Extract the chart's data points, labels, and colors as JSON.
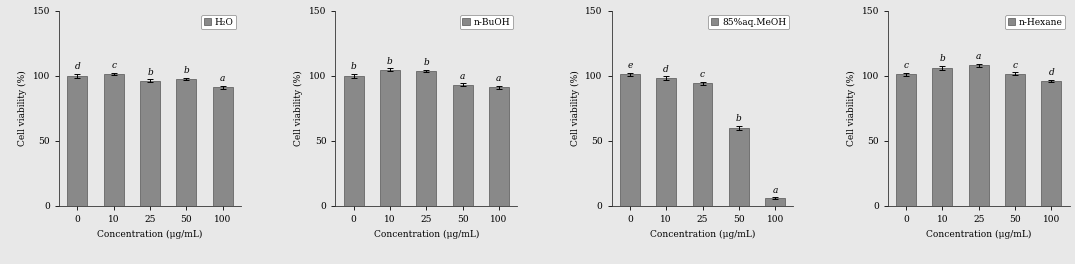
{
  "panels": [
    {
      "legend": "H₂O",
      "categories": [
        "0",
        "10",
        "25",
        "50",
        "100"
      ],
      "values": [
        100.0,
        101.5,
        96.0,
        97.5,
        91.0
      ],
      "errors": [
        1.5,
        0.8,
        1.2,
        1.0,
        1.0
      ],
      "letters": [
        "d",
        "c",
        "b",
        "b",
        "a"
      ]
    },
    {
      "legend": "n-BuOH",
      "categories": [
        "0",
        "10",
        "25",
        "50",
        "100"
      ],
      "values": [
        100.0,
        104.5,
        103.5,
        93.0,
        91.0
      ],
      "errors": [
        1.5,
        1.2,
        1.0,
        1.0,
        1.0
      ],
      "letters": [
        "b",
        "b",
        "b",
        "a",
        "a"
      ]
    },
    {
      "legend": "85%aq.MeOH",
      "categories": [
        "0",
        "10",
        "25",
        "50",
        "100"
      ],
      "values": [
        101.0,
        98.0,
        94.0,
        60.0,
        6.0
      ],
      "errors": [
        1.2,
        1.5,
        1.3,
        1.5,
        0.5
      ],
      "letters": [
        "e",
        "d",
        "c",
        "b",
        "a"
      ]
    },
    {
      "legend": "n-Hexane",
      "categories": [
        "0",
        "10",
        "25",
        "50",
        "100"
      ],
      "values": [
        101.0,
        106.0,
        108.0,
        101.5,
        96.0
      ],
      "errors": [
        1.2,
        1.5,
        1.0,
        1.2,
        1.0
      ],
      "letters": [
        "c",
        "b",
        "a",
        "c",
        "d"
      ]
    }
  ],
  "bar_color": "#898989",
  "bar_edgecolor": "#555555",
  "bg_color": "#e8e8e8",
  "ylabel": "Cell viability (%)",
  "xlabel": "Concentration (μg/mL)",
  "ylim": [
    0,
    150
  ],
  "yticks": [
    0,
    50,
    100,
    150
  ],
  "letter_fontsize": 6.5,
  "axis_fontsize": 6.5,
  "legend_fontsize": 6.5,
  "tick_fontsize": 6.5
}
